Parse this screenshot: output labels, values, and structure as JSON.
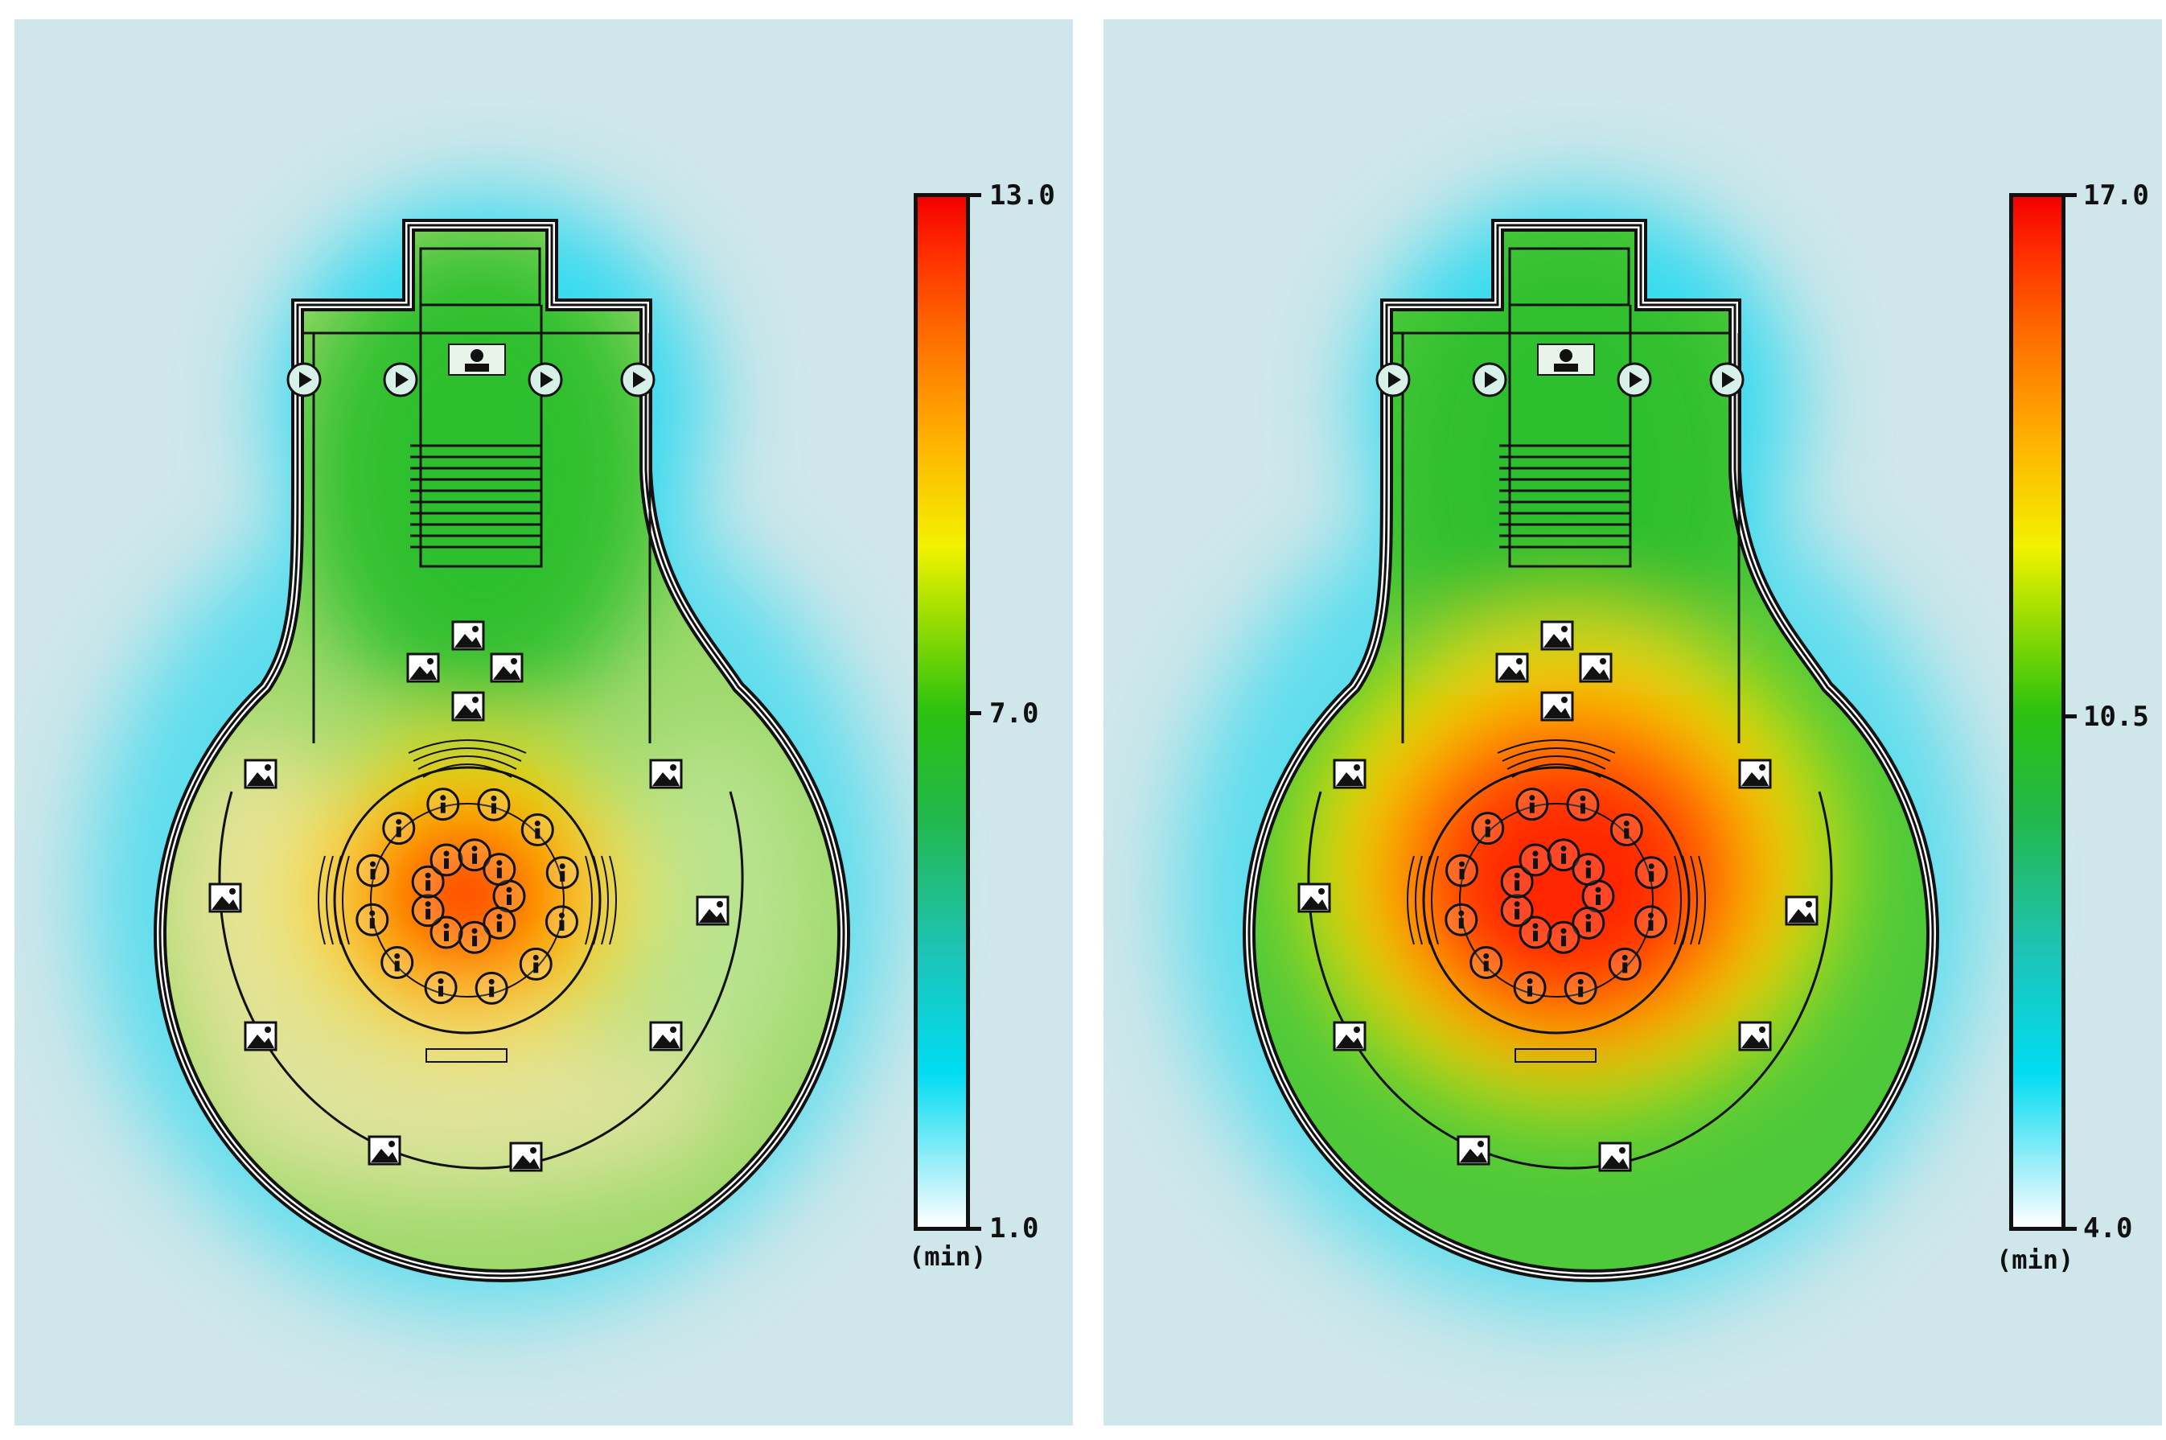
{
  "panels": [
    {
      "id": "left",
      "colorbar": {
        "max_label": "13.0",
        "mid_label": "7.0",
        "min_label": "1.0",
        "unit": "(min)",
        "range": [
          1.0,
          13.0
        ]
      }
    },
    {
      "id": "right",
      "colorbar": {
        "max_label": "17.0",
        "mid_label": "10.5",
        "min_label": "4.0",
        "unit": "(min)",
        "range": [
          4.0,
          17.0
        ]
      }
    }
  ],
  "colors": {
    "background": "#cfe7ea",
    "low": "#00dcf2",
    "mid": "#2bc20f",
    "high": "#f40000",
    "outline": "#111111"
  },
  "icons": {
    "exhibit": "picture-icon",
    "info": "info-icon",
    "entry": "play-icon",
    "reception": "desk-icon"
  }
}
